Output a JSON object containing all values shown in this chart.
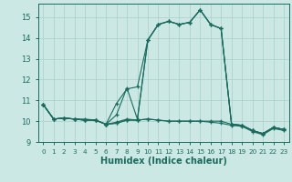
{
  "xlabel": "Humidex (Indice chaleur)",
  "background_color": "#cce8e4",
  "grid_color": "#aacfcb",
  "line_color": "#1a6b5e",
  "xlim": [
    -0.5,
    23.5
  ],
  "ylim": [
    9.0,
    15.65
  ],
  "yticks": [
    9,
    10,
    11,
    12,
    13,
    14,
    15
  ],
  "xticks": [
    0,
    1,
    2,
    3,
    4,
    5,
    6,
    7,
    8,
    9,
    10,
    11,
    12,
    13,
    14,
    15,
    16,
    17,
    18,
    19,
    20,
    21,
    22,
    23
  ],
  "series": [
    [
      10.8,
      10.1,
      10.15,
      10.1,
      10.1,
      10.05,
      9.85,
      10.85,
      11.55,
      11.65,
      13.9,
      14.65,
      14.8,
      14.65,
      14.75,
      15.35,
      14.65,
      14.45,
      9.85,
      9.8,
      9.55,
      9.4,
      9.7,
      9.6
    ],
    [
      10.8,
      10.1,
      10.15,
      10.1,
      10.05,
      10.05,
      9.85,
      10.3,
      11.6,
      10.1,
      13.9,
      14.65,
      14.8,
      14.65,
      14.75,
      15.35,
      14.65,
      14.45,
      9.85,
      9.8,
      9.55,
      9.4,
      9.7,
      9.6
    ],
    [
      10.8,
      10.1,
      10.15,
      10.1,
      10.05,
      10.05,
      9.85,
      9.95,
      10.1,
      10.05,
      13.9,
      14.65,
      14.8,
      14.65,
      14.75,
      15.35,
      14.65,
      14.45,
      9.85,
      9.8,
      9.55,
      9.4,
      9.7,
      9.6
    ],
    [
      10.8,
      10.1,
      10.15,
      10.1,
      10.05,
      10.05,
      9.85,
      9.9,
      10.05,
      10.05,
      10.1,
      10.05,
      10.0,
      10.0,
      10.0,
      10.0,
      10.0,
      10.0,
      9.85,
      9.8,
      9.55,
      9.4,
      9.7,
      9.6
    ],
    [
      10.8,
      10.1,
      10.15,
      10.1,
      10.05,
      10.05,
      9.85,
      9.9,
      10.05,
      10.05,
      10.1,
      10.05,
      10.0,
      10.0,
      10.0,
      10.0,
      9.95,
      9.9,
      9.8,
      9.75,
      9.5,
      9.35,
      9.65,
      9.55
    ]
  ]
}
